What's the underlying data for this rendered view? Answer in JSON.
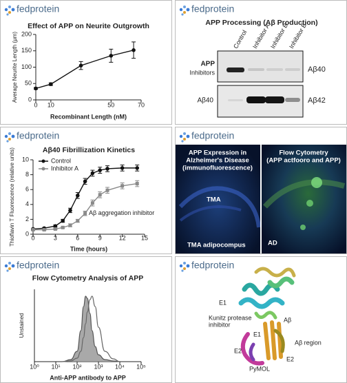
{
  "brand": "fedprotein",
  "chart_data": [
    {
      "type": "line",
      "title": "Effect of APP on Neurite Outgrowth",
      "x_label": "Recombinant Length (nM)",
      "y_label": "Average Neurite Length (μm)",
      "x": [
        0,
        10,
        30,
        50,
        65
      ],
      "series": [
        {
          "color": "#111111",
          "values": [
            35,
            48,
            105,
            135,
            152
          ],
          "errors": [
            3,
            4,
            12,
            20,
            25
          ]
        }
      ],
      "xlim": [
        0,
        70
      ],
      "xticks": [
        0,
        10,
        50,
        70
      ],
      "ylim": [
        0,
        200
      ],
      "yticks": [
        0,
        50,
        100,
        150,
        200
      ]
    },
    {
      "type": "line",
      "title": "Aβ40 Fibrillization Kinetics",
      "x_label": "Time (hours)",
      "y_label": "Thioflavin T Fluorescence (relative units)",
      "annotation": "Aβ aggregation inhibitor",
      "x": [
        0,
        1.5,
        3,
        4,
        5,
        6,
        7,
        8,
        9,
        10,
        12,
        14
      ],
      "series": [
        {
          "name": "Control",
          "color": "#111111",
          "values": [
            0.7,
            0.8,
            1.1,
            1.8,
            3.2,
            5.2,
            7.1,
            8.2,
            8.6,
            8.8,
            8.9,
            8.9
          ],
          "errors": [
            0.1,
            0.1,
            0.15,
            0.2,
            0.3,
            0.4,
            0.4,
            0.4,
            0.4,
            0.4,
            0.4,
            0.4
          ]
        },
        {
          "name": "Inhibitor A",
          "color": "#8a8a8a",
          "values": [
            0.6,
            0.6,
            0.7,
            0.9,
            1.2,
            1.8,
            2.8,
            4.2,
            5.3,
            5.9,
            6.5,
            6.8
          ],
          "errors": [
            0.1,
            0.1,
            0.1,
            0.1,
            0.2,
            0.2,
            0.3,
            0.4,
            0.4,
            0.4,
            0.4,
            0.4
          ]
        }
      ],
      "legend": "upper left",
      "xlim": [
        0,
        15
      ],
      "xticks": [
        0,
        3,
        6,
        9,
        12,
        15
      ],
      "ylim": [
        0,
        10
      ],
      "yticks": [
        0,
        2,
        4,
        6,
        8,
        10
      ]
    },
    {
      "type": "area",
      "title": "Flow Cytometry Analysis of APP",
      "x_label": "Anti-APP antibody to APP",
      "y_label": "Unstained",
      "xscale": "log",
      "x": [
        20,
        50,
        100,
        150,
        200,
        250,
        300,
        400,
        500,
        700,
        1000,
        2000,
        5000,
        10000
      ],
      "series": [
        {
          "color": "#9a9a9a",
          "values": [
            0,
            3,
            15,
            45,
            80,
            95,
            92,
            70,
            45,
            22,
            10,
            3,
            1,
            0
          ]
        },
        {
          "color": "#666666",
          "values": [
            0,
            1,
            5,
            15,
            35,
            55,
            72,
            90,
            95,
            80,
            50,
            15,
            4,
            0
          ]
        }
      ],
      "xlim": [
        1,
        100000
      ],
      "xticks": [
        {
          "value": 1,
          "label": "10⁰"
        },
        {
          "value": 10,
          "label": "10¹"
        },
        {
          "value": 100,
          "label": "10²"
        },
        {
          "value": 1000,
          "label": "10³"
        },
        {
          "value": 10000,
          "label": "10⁴"
        },
        {
          "value": 100000,
          "label": "10⁵"
        }
      ],
      "ylim": [
        0,
        105
      ]
    }
  ],
  "blot": {
    "title": "APP Processing (Aβ Production)",
    "lanes": [
      "Control",
      "Inhibitor A",
      "Inhibitor B",
      "Inhibitor B"
    ],
    "left_labels": [
      "APP",
      "Inhibitors",
      "Aβ40"
    ],
    "right_labels": [
      "Aβ40",
      "Aβ42"
    ]
  },
  "microscopy": {
    "left_title": [
      "APP Expression in",
      "Alzheimer's Disease",
      "(immunofluorescence)"
    ],
    "right_title": [
      "Flow Cytometry",
      "(APP actfooro and APP)"
    ],
    "labels": [
      "TMA",
      "TMA adipocompus",
      "AD"
    ]
  },
  "structure": {
    "labels": [
      "E1",
      "Kunitz protease",
      "inhibitor",
      "Aβ",
      "E1",
      "Aβ region",
      "E2",
      "E2",
      "PyMOL"
    ]
  }
}
